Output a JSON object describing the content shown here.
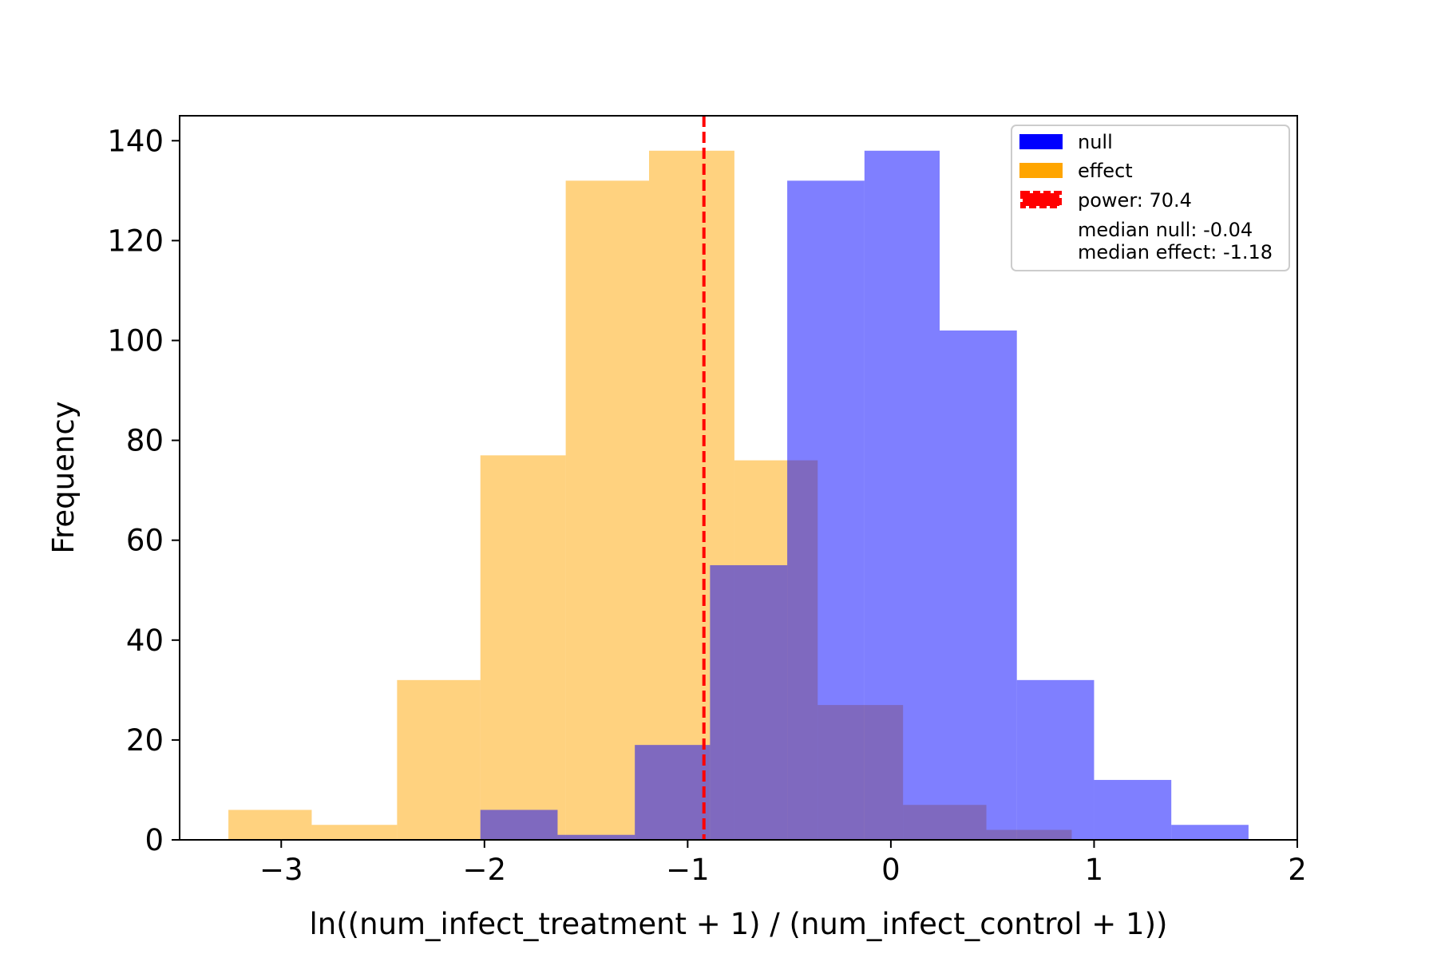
{
  "chart_data": {
    "type": "bar",
    "title": "",
    "xlabel": "ln((num_infect_treatment + 1) / (num_infect_control + 1))",
    "ylabel": "Frequency",
    "xlim": [
      -3.5,
      2.0
    ],
    "ylim": [
      0,
      145
    ],
    "grid": false,
    "legend_position": "top-right",
    "x_ticks": [
      -3,
      -2,
      -1,
      0,
      1,
      2
    ],
    "x_tick_labels": [
      "−3",
      "−2",
      "−1",
      "0",
      "1",
      "2"
    ],
    "y_ticks": [
      0,
      20,
      40,
      60,
      80,
      100,
      120,
      140
    ],
    "y_tick_labels": [
      "0",
      "20",
      "40",
      "60",
      "80",
      "100",
      "120",
      "140"
    ],
    "series": [
      {
        "name": "null",
        "color": "#0000ff",
        "alpha": 0.5,
        "bin_edges": [
          -2.02,
          -1.64,
          -1.26,
          -0.89,
          -0.51,
          -0.13,
          0.24,
          0.62,
          1.0,
          1.38,
          1.76
        ],
        "counts": [
          6,
          1,
          19,
          55,
          132,
          138,
          102,
          32,
          12,
          3
        ]
      },
      {
        "name": "effect",
        "color": "#ffa500",
        "alpha": 0.5,
        "bin_edges": [
          -3.26,
          -2.85,
          -2.43,
          -2.02,
          -1.6,
          -1.19,
          -0.77,
          -0.36,
          0.06,
          0.47,
          0.89
        ],
        "counts": [
          6,
          3,
          32,
          77,
          132,
          138,
          76,
          27,
          7,
          2
        ]
      }
    ],
    "threshold_line": {
      "x": -0.92,
      "color": "#ff0000",
      "style": "dashed"
    },
    "legend": {
      "entries": [
        "null",
        "effect",
        "power: 70.4"
      ],
      "notes": [
        "median null: -0.04",
        "median effect: -1.18"
      ]
    }
  }
}
